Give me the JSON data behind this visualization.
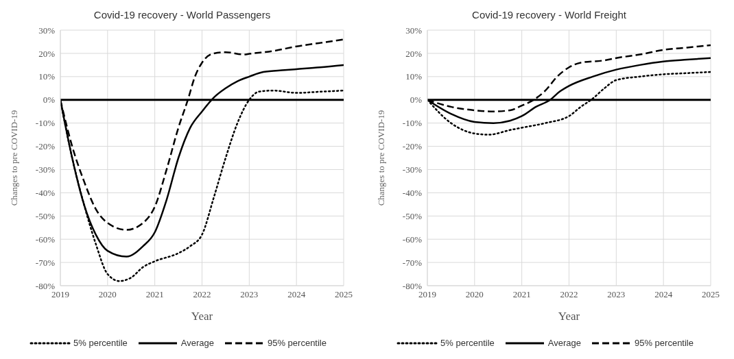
{
  "chart_data": [
    {
      "type": "line",
      "title": "Covid-19 recovery - World Passengers",
      "xlabel": "Year",
      "ylabel": "Changes to pre COVID-19",
      "xlim": [
        2019,
        2025
      ],
      "xticks": [
        2019,
        2020,
        2021,
        2022,
        2023,
        2024,
        2025
      ],
      "ylim": [
        -80,
        30
      ],
      "yticks": [
        {
          "value": -80,
          "label": "-80%"
        },
        {
          "value": -70,
          "label": "-70%"
        },
        {
          "value": -60,
          "label": "-60%"
        },
        {
          "value": -50,
          "label": "-50%"
        },
        {
          "value": -40,
          "label": "-40%"
        },
        {
          "value": -30,
          "label": "-30%"
        },
        {
          "value": -20,
          "label": "-20%"
        },
        {
          "value": -10,
          "label": "-10%"
        },
        {
          "value": 0,
          "label": "0%"
        },
        {
          "value": 10,
          "label": "10%"
        },
        {
          "value": 20,
          "label": "20%"
        },
        {
          "value": 30,
          "label": "30%"
        }
      ],
      "grid": true,
      "legend": "bottom",
      "marker": "none",
      "ref_lines": [
        {
          "axis": "y",
          "value": 0,
          "label": null,
          "color": "#000000"
        }
      ],
      "series": [
        {
          "name": "5% percentile",
          "color": "#000000",
          "line_style": "dotted",
          "x": [
            2019,
            2019.25,
            2019.5,
            2019.75,
            2020,
            2020.25,
            2020.5,
            2020.75,
            2021,
            2021.5,
            2021.75,
            2022,
            2022.25,
            2022.5,
            2022.75,
            2023,
            2023.2,
            2023.5,
            2024,
            2024.5,
            2025
          ],
          "values": [
            0,
            -25,
            -45,
            -62,
            -75,
            -78,
            -76.5,
            -72,
            -69.5,
            -66,
            -63,
            -58,
            -42,
            -25,
            -10,
            0,
            3.5,
            4,
            3,
            3.5,
            4
          ]
        },
        {
          "name": "Average",
          "color": "#000000",
          "line_style": "solid",
          "x": [
            2019,
            2019.25,
            2019.5,
            2019.75,
            2020,
            2020.4,
            2020.75,
            2021,
            2021.25,
            2021.5,
            2021.75,
            2022,
            2022.25,
            2022.5,
            2022.75,
            2023,
            2023.3,
            2023.75,
            2024,
            2024.5,
            2025
          ],
          "values": [
            0,
            -25,
            -45,
            -58,
            -65,
            -67.5,
            -63,
            -57,
            -43,
            -25,
            -12,
            -5,
            1,
            5,
            8,
            10,
            12,
            12.8,
            13.2,
            14,
            15
          ]
        },
        {
          "name": "95% percentile",
          "color": "#000000",
          "line_style": "dashed",
          "x": [
            2019,
            2019.25,
            2019.5,
            2019.75,
            2020,
            2020.4,
            2020.75,
            2021,
            2021.25,
            2021.5,
            2021.7,
            2021.85,
            2022,
            2022.25,
            2022.5,
            2022.9,
            2023,
            2023.5,
            2024,
            2024.5,
            2025
          ],
          "values": [
            0,
            -20,
            -35,
            -47,
            -53,
            -56,
            -53,
            -46,
            -30,
            -12,
            0,
            10,
            16,
            20,
            20.5,
            19.5,
            19.8,
            21,
            23,
            24.5,
            26
          ]
        }
      ]
    },
    {
      "type": "line",
      "title": "Covid-19 recovery - World Freight",
      "xlabel": "Year",
      "ylabel": "Changes to pre COVID-19",
      "xlim": [
        2019,
        2025
      ],
      "xticks": [
        2019,
        2020,
        2021,
        2022,
        2023,
        2024,
        2025
      ],
      "ylim": [
        -80,
        30
      ],
      "yticks": [
        {
          "value": -80,
          "label": "-80%"
        },
        {
          "value": -70,
          "label": "-70%"
        },
        {
          "value": -60,
          "label": "-60%"
        },
        {
          "value": -50,
          "label": "-50%"
        },
        {
          "value": -40,
          "label": "-40%"
        },
        {
          "value": -30,
          "label": "-30%"
        },
        {
          "value": -20,
          "label": "-20%"
        },
        {
          "value": -10,
          "label": "-10%"
        },
        {
          "value": 0,
          "label": "0%"
        },
        {
          "value": 10,
          "label": "10%"
        },
        {
          "value": 20,
          "label": "20%"
        },
        {
          "value": 30,
          "label": "30%"
        }
      ],
      "grid": true,
      "legend": "bottom",
      "marker": "none",
      "ref_lines": [
        {
          "axis": "y",
          "value": 0,
          "label": null,
          "color": "#000000"
        }
      ],
      "series": [
        {
          "name": "5% percentile",
          "color": "#000000",
          "line_style": "dotted",
          "x": [
            2019,
            2019.5,
            2020,
            2020.3,
            2020.75,
            2021,
            2021.5,
            2022,
            2022.25,
            2022.5,
            2022.75,
            2023,
            2023.5,
            2024,
            2024.5,
            2025
          ],
          "values": [
            0,
            -10,
            -14.5,
            -15,
            -13,
            -12,
            -10,
            -7,
            -3,
            0.5,
            5,
            8.5,
            10,
            11,
            11.5,
            12
          ]
        },
        {
          "name": "Average",
          "color": "#000000",
          "line_style": "solid",
          "x": [
            2019,
            2019.5,
            2020,
            2020.4,
            2020.75,
            2021,
            2021.3,
            2021.6,
            2021.8,
            2022,
            2022.5,
            2023,
            2023.5,
            2024,
            2024.5,
            2025
          ],
          "values": [
            0,
            -6,
            -9.5,
            -10,
            -9,
            -7,
            -3,
            0,
            3.5,
            6,
            10,
            13,
            15,
            16.5,
            17.3,
            18
          ]
        },
        {
          "name": "95% percentile",
          "color": "#000000",
          "line_style": "dashed",
          "x": [
            2019,
            2019.5,
            2020,
            2020.4,
            2020.75,
            2021,
            2021.25,
            2021.5,
            2021.75,
            2022,
            2022.25,
            2022.75,
            2023,
            2023.5,
            2024,
            2024.5,
            2025
          ],
          "values": [
            0,
            -3,
            -4.5,
            -5,
            -4.5,
            -2.5,
            0,
            4,
            10,
            14,
            16,
            17,
            18,
            19.5,
            21.5,
            22.5,
            23.5
          ]
        }
      ]
    }
  ]
}
